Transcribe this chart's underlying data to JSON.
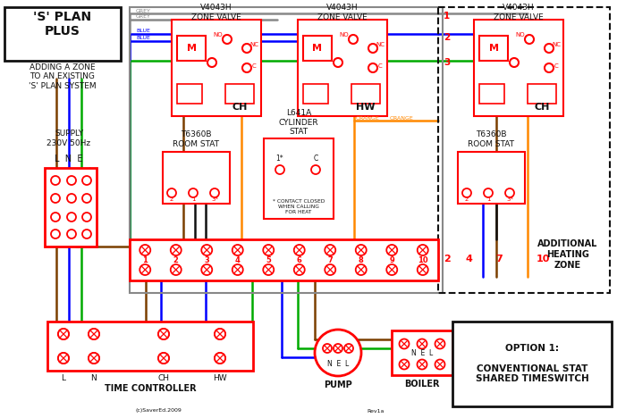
{
  "title": "'S' PLAN\nPLUS",
  "subtitle": "ADDING A ZONE\nTO AN EXISTING\n'S' PLAN SYSTEM",
  "supply_text": "SUPPLY\n230V 50Hz",
  "supply_lne": "L  N  E",
  "wire_colors": {
    "grey": "#888888",
    "blue": "#0000ff",
    "green": "#00aa00",
    "brown": "#7B3F00",
    "orange": "#ff8800",
    "black": "#111111",
    "red": "#ff0000",
    "white": "#ffffff"
  },
  "terminal_numbers": [
    "1",
    "2",
    "3",
    "4",
    "5",
    "6",
    "7",
    "8",
    "9",
    "10"
  ],
  "option_text": "OPTION 1:\n\nCONVENTIONAL STAT\nSHARED TIMESWITCH",
  "additional_heating_zone": "ADDITIONAL\nHEATING\nZONE",
  "contact_note": "* CONTACT CLOSED\nWHEN CALLING\nFOR HEAT",
  "copyright": "(c)SaverEd.2009",
  "rev": "Rev1a",
  "zone_valve_1_label": "CH",
  "zone_valve_2_label": "HW",
  "zone_valve_3_label": "CH"
}
